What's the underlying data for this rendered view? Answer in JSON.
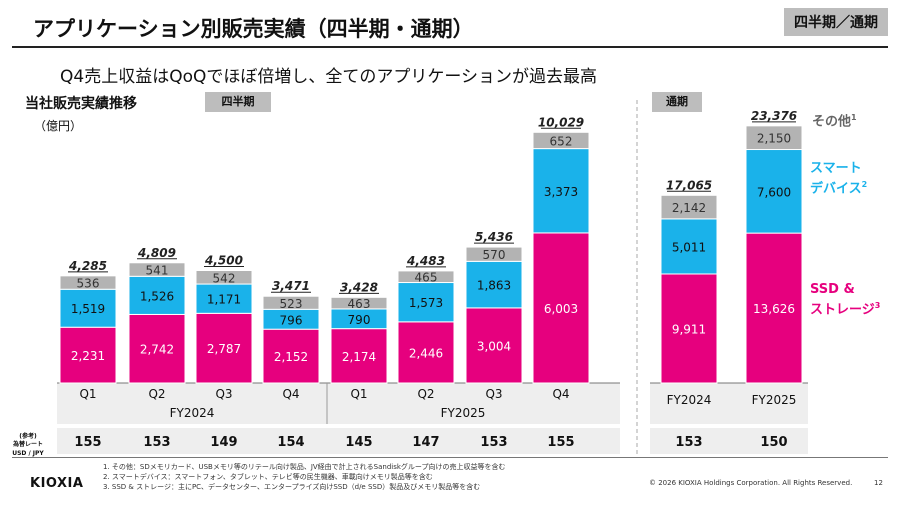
{
  "page": {
    "title": "アプリケーション別販売実績（四半期・通期）",
    "corner_badge": "四半期／通期",
    "headline": "Q4売上収益はQoQでほぼ倍増し、全てのアプリケーションが過去最高",
    "subtitle": "当社販売実績推移",
    "quarter_badge": "四半期",
    "annual_badge": "通期",
    "unit": "（億円）",
    "rate_label_line1": "(参考)",
    "rate_label_line2": "為替レート",
    "rate_label_line3": "USD / JPY",
    "logo": "KIOXIA",
    "notes": [
      "1. その他：SDメモリカード、USBメモリ等のリテール向け製品、JV経由で計上されるSandiskグループ向けの売上収益等を含む",
      "2. スマートデバイス：スマートフォン、タブレット、テレビ等の民生機器、車載向けメモリ製品等を含む",
      "3. SSD & ストレージ：主にPC、データセンター、エンタープライズ向けSSD（d/e SSD）製品及びメモリ製品等を含む"
    ],
    "copyright": "© 2026 KIOXIA Holdings Corporation. All Rights Reserved.",
    "page_number": "12"
  },
  "legend": [
    {
      "name": "その他",
      "sup": "1",
      "color": "#b3b3b3",
      "text_color": "#666666"
    },
    {
      "name": "スマート\nデバイス",
      "sup": "2",
      "color": "#1ab2ea",
      "text_color": "#1ab2ea"
    },
    {
      "name": "SSD &\nストレージ",
      "sup": "3",
      "color": "#e6007e",
      "text_color": "#e6007e"
    }
  ],
  "chart_data": [
    {
      "type": "bar",
      "stacked": true,
      "categories": [
        "Q1",
        "Q2",
        "Q3",
        "Q4",
        "Q1",
        "Q2",
        "Q3",
        "Q4"
      ],
      "groups": [
        {
          "label": "FY2024",
          "span": 4
        },
        {
          "label": "FY2025",
          "span": 4
        }
      ],
      "series": [
        {
          "name": "SSD & ストレージ",
          "color": "#e6007e",
          "values": [
            2231,
            2742,
            2787,
            2152,
            2174,
            2446,
            3004,
            6003
          ],
          "labels": [
            "2,231",
            "2,742",
            "2,787",
            "2,152",
            "2,174",
            "2,446",
            "3,004",
            "6,003"
          ]
        },
        {
          "name": "スマートデバイス",
          "color": "#1ab2ea",
          "values": [
            1519,
            1526,
            1171,
            796,
            790,
            1573,
            1863,
            3373
          ],
          "labels": [
            "1,519",
            "1,526",
            "1,171",
            "796",
            "790",
            "1,573",
            "1,863",
            "3,373"
          ]
        },
        {
          "name": "その他",
          "color": "#b3b3b3",
          "values": [
            536,
            541,
            542,
            523,
            463,
            465,
            570,
            652
          ],
          "labels": [
            "536",
            "541",
            "542",
            "523",
            "463",
            "465",
            "570",
            "652"
          ]
        }
      ],
      "totals": [
        4285,
        4809,
        4500,
        3471,
        3428,
        4483,
        5436,
        10029
      ],
      "total_labels": [
        "4,285",
        "4,809",
        "4,500",
        "3,471",
        "3,428",
        "4,483",
        "5,436",
        "10,029"
      ],
      "exchange_rate": [
        155,
        153,
        149,
        154,
        145,
        147,
        153,
        155
      ]
    },
    {
      "type": "bar",
      "stacked": true,
      "categories": [
        "FY2024",
        "FY2025"
      ],
      "series": [
        {
          "name": "SSD & ストレージ",
          "color": "#e6007e",
          "values": [
            9911,
            13626
          ],
          "labels": [
            "9,911",
            "13,626"
          ]
        },
        {
          "name": "スマートデバイス",
          "color": "#1ab2ea",
          "values": [
            5011,
            7600
          ],
          "labels": [
            "5,011",
            "7,600"
          ]
        },
        {
          "name": "その他",
          "color": "#b3b3b3",
          "values": [
            2142,
            2150
          ],
          "labels": [
            "2,142",
            "2,150"
          ]
        }
      ],
      "totals": [
        17065,
        23376
      ],
      "total_labels": [
        "17,065",
        "23,376"
      ],
      "exchange_rate": [
        153,
        150
      ]
    }
  ]
}
